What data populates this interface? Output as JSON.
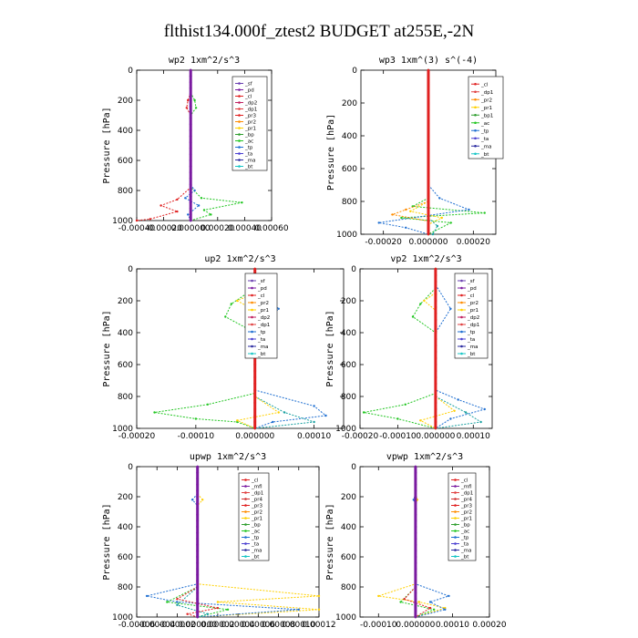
{
  "figure_title": "flthist134.000f_ztest2  BUDGET at255E,-2N",
  "chart_data": [
    {
      "type": "line",
      "title": "wp2  1xm^2/s^3",
      "ylabel": "Pressure [hPa]",
      "xlim": [
        -0.0004,
        0.0006
      ],
      "ylim": [
        1000,
        0
      ],
      "xticks": [
        -0.0004,
        -0.0002,
        0,
        0.0002,
        0.0004,
        0.0006
      ],
      "xticklabels": [
        "-0.00040",
        "-0.00020",
        "0.000000",
        "0.00020",
        "0.00040",
        "0.00060"
      ],
      "yticks": [
        0,
        200,
        400,
        600,
        800,
        1000
      ],
      "legend": [
        "_sf",
        "_pd",
        "_cl",
        "_dp2",
        "_dp1",
        "_pr3",
        "_pr2",
        "_pr1",
        "_bp",
        "_ac",
        "_tp",
        "_ta",
        "_ma",
        "_bt"
      ],
      "series": [
        {
          "name": "_cl",
          "color": "#e02020",
          "points": [
            [
              0,
              0
            ],
            [
              0,
              150
            ],
            [
              -2e-05,
              200
            ],
            [
              -3e-05,
              250
            ],
            [
              0,
              300
            ],
            [
              0,
              780
            ],
            [
              -0.0001,
              860
            ],
            [
              -0.00022,
              900
            ],
            [
              -0.0001,
              940
            ],
            [
              -0.0003,
              990
            ],
            [
              -0.0004,
              1000
            ]
          ]
        },
        {
          "name": "_pr1",
          "color": "#22c622",
          "points": [
            [
              0,
              0
            ],
            [
              0,
              150
            ],
            [
              3e-05,
              200
            ],
            [
              4e-05,
              250
            ],
            [
              0,
              300
            ],
            [
              0,
              780
            ],
            [
              8e-05,
              850
            ],
            [
              0.00038,
              880
            ],
            [
              0.0001,
              930
            ],
            [
              0.00015,
              960
            ],
            [
              0,
              1000
            ]
          ]
        },
        {
          "name": "_tp",
          "color": "#1f6fd1",
          "points": [
            [
              0,
              760
            ],
            [
              3e-05,
              800
            ],
            [
              -4e-05,
              850
            ],
            [
              6e-05,
              900
            ],
            [
              -2e-05,
              960
            ],
            [
              0,
              1000
            ]
          ]
        },
        {
          "name": "_pd",
          "color": "#7a1aa0",
          "points": [
            [
              0,
              0
            ],
            [
              0,
              1000
            ]
          ]
        }
      ]
    },
    {
      "type": "line",
      "title": "wp3  1xm^(3) s^(-4)",
      "ylabel": "Pressure [hPa]",
      "xlim": [
        -0.0003,
        0.0003
      ],
      "ylim": [
        1000,
        0
      ],
      "xticks": [
        -0.0002,
        0,
        0.0002
      ],
      "xticklabels": [
        "-0.00020",
        "0.000000",
        "0.00020"
      ],
      "yticks": [
        0,
        200,
        400,
        600,
        800,
        1000
      ],
      "legend": [
        "_cl",
        "_dp1",
        "_pr2",
        "_pr1",
        "_bp1",
        "_ac",
        "_tp",
        "_ta",
        "_ma",
        "_bt"
      ],
      "series": [
        {
          "name": "_ac",
          "color": "#22c622",
          "points": [
            [
              0,
              0
            ],
            [
              0,
              780
            ],
            [
              -7e-05,
              830
            ],
            [
              0.00025,
              870
            ],
            [
              -0.00012,
              900
            ],
            [
              0.0001,
              930
            ],
            [
              0,
              1000
            ]
          ]
        },
        {
          "name": "_tp",
          "color": "#1f6fd1",
          "points": [
            [
              0,
              0
            ],
            [
              0,
              700
            ],
            [
              5e-05,
              780
            ],
            [
              0.00018,
              850
            ],
            [
              -0.00022,
              930
            ],
            [
              -0.0001,
              960
            ],
            [
              0,
              1000
            ]
          ]
        },
        {
          "name": "_pr2",
          "color": "#ff8c00",
          "points": [
            [
              0,
              800
            ],
            [
              -0.0001,
              850
            ],
            [
              -0.00016,
              880
            ],
            [
              0,
              920
            ]
          ]
        },
        {
          "name": "_ta",
          "color": "#ffd000",
          "points": [
            [
              0,
              800
            ],
            [
              -8e-05,
              860
            ],
            [
              6e-05,
              900
            ],
            [
              0,
              940
            ]
          ]
        },
        {
          "name": "_bt",
          "color": "#17a0a0",
          "points": [
            [
              0,
              900
            ],
            [
              4e-05,
              950
            ],
            [
              2e-05,
              1000
            ]
          ]
        },
        {
          "name": "_cl",
          "color": "#e02020",
          "points": [
            [
              0,
              0
            ],
            [
              0,
              1000
            ]
          ]
        }
      ]
    },
    {
      "type": "line",
      "title": "up2  1xm^2/s^3",
      "ylabel": "Pressure [hPa]",
      "xlim": [
        -0.0002,
        0.00015
      ],
      "ylim": [
        1000,
        0
      ],
      "xticks": [
        -0.0002,
        -0.0001,
        0,
        0.0001
      ],
      "xticklabels": [
        "-0.00020",
        "-0.00010",
        "0.000000",
        "0.00010"
      ],
      "yticks": [
        0,
        200,
        400,
        600,
        800,
        1000
      ],
      "legend": [
        "_sf",
        "_pd",
        "_cl",
        "_pr2",
        "_pr1",
        "_dp2",
        "_dp1",
        "_tp",
        "_ta",
        "_ma",
        "_bt"
      ],
      "series": [
        {
          "name": "_dp1",
          "color": "#22c622",
          "points": [
            [
              0,
              0
            ],
            [
              0,
              120
            ],
            [
              -4e-05,
              220
            ],
            [
              -5e-05,
              300
            ],
            [
              0,
              400
            ],
            [
              0,
              780
            ],
            [
              -8e-05,
              850
            ],
            [
              -0.00017,
              900
            ],
            [
              -0.0001,
              940
            ],
            [
              -3e-05,
              960
            ],
            [
              0,
              1000
            ]
          ]
        },
        {
          "name": "_pr2",
          "color": "#ffd000",
          "points": [
            [
              0,
              150
            ],
            [
              -3e-05,
              200
            ],
            [
              0,
              260
            ],
            [
              0,
              800
            ],
            [
              4e-05,
              900
            ],
            [
              -3e-05,
              950
            ],
            [
              0,
              1000
            ]
          ]
        },
        {
          "name": "_tp",
          "color": "#1f6fd1",
          "points": [
            [
              0,
              100
            ],
            [
              4e-05,
              250
            ],
            [
              0,
              400
            ],
            [
              0,
              760
            ],
            [
              0.0001,
              860
            ],
            [
              0.00012,
              920
            ],
            [
              3e-05,
              960
            ],
            [
              0,
              1000
            ]
          ]
        },
        {
          "name": "_bt",
          "color": "#17a0a0",
          "points": [
            [
              0,
              800
            ],
            [
              5e-05,
              900
            ],
            [
              0.0001,
              960
            ],
            [
              0,
              1000
            ]
          ]
        },
        {
          "name": "_cl",
          "color": "#e02020",
          "points": [
            [
              0,
              0
            ],
            [
              0,
              1000
            ]
          ]
        }
      ]
    },
    {
      "type": "line",
      "title": "vp2  1xm^2/s^3",
      "ylabel": "Pressure [hPa]",
      "xlim": [
        -0.0002,
        0.00015
      ],
      "ylim": [
        1000,
        0
      ],
      "xticks": [
        -0.0002,
        -0.0001,
        0,
        0.0001
      ],
      "xticklabels": [
        "-0.00020",
        "-0.00010",
        "0.000000",
        "0.00010"
      ],
      "yticks": [
        0,
        200,
        400,
        600,
        800,
        1000
      ],
      "legend": [
        "_sf",
        "_pd",
        "_cl",
        "_pr2",
        "_pr1",
        "_dp2",
        "_dp1",
        "_tp",
        "_ta",
        "_ma",
        "_bt"
      ],
      "series": [
        {
          "name": "_dp1",
          "color": "#22c622",
          "points": [
            [
              0,
              0
            ],
            [
              0,
              120
            ],
            [
              -4e-05,
              220
            ],
            [
              -6e-05,
              300
            ],
            [
              0,
              400
            ],
            [
              0,
              780
            ],
            [
              -8e-05,
              850
            ],
            [
              -0.00019,
              900
            ],
            [
              -0.0001,
              940
            ],
            [
              0,
              1000
            ]
          ]
        },
        {
          "name": "_pr2",
          "color": "#ffd000",
          "points": [
            [
              0,
              150
            ],
            [
              -3e-05,
              200
            ],
            [
              0,
              260
            ],
            [
              0,
              800
            ],
            [
              5e-05,
              890
            ],
            [
              -4e-05,
              950
            ],
            [
              0,
              1000
            ]
          ]
        },
        {
          "name": "_tp",
          "color": "#1f6fd1",
          "points": [
            [
              0,
              100
            ],
            [
              4e-05,
              250
            ],
            [
              0,
              400
            ],
            [
              0,
              760
            ],
            [
              6e-05,
              820
            ],
            [
              0.00013,
              880
            ],
            [
              4e-05,
              940
            ],
            [
              0,
              1000
            ]
          ]
        },
        {
          "name": "_bt",
          "color": "#17a0a0",
          "points": [
            [
              0,
              800
            ],
            [
              8e-05,
              900
            ],
            [
              0.00012,
              960
            ],
            [
              0,
              1000
            ]
          ]
        },
        {
          "name": "_cl",
          "color": "#e02020",
          "points": [
            [
              0,
              0
            ],
            [
              0,
              1000
            ]
          ]
        }
      ]
    },
    {
      "type": "line",
      "title": "upwp  1xm^2/s^3",
      "ylabel": "Pressure [hPa]",
      "xlim": [
        -6e-05,
        0.00012
      ],
      "ylim": [
        1000,
        0
      ],
      "xticks": [
        -6e-05,
        -4e-05,
        -2e-05,
        0,
        2e-05,
        4e-05,
        6e-05,
        8e-05,
        0.0001,
        0.00012
      ],
      "xticklabels": [
        "-0.00006",
        "-0.00004",
        "-0.00002",
        "0.000000",
        "0.00002",
        "0.00004",
        "0.00006",
        "0.00008",
        "0.00010",
        "0.00012"
      ],
      "yticks": [
        0,
        200,
        400,
        600,
        800,
        1000
      ],
      "legend": [
        "_cl",
        "_mfl",
        "_dp1",
        "_pr4",
        "_pr3",
        "_pr2",
        "_pr1",
        "_bp",
        "_ac",
        "_tp",
        "_ta",
        "_ma",
        "_bt"
      ],
      "series": [
        {
          "name": "_pr1",
          "color": "#ffd000",
          "points": [
            [
              0,
              180
            ],
            [
              5e-06,
              220
            ],
            [
              0,
              260
            ],
            [
              0,
              780
            ],
            [
              0.00012,
              860
            ],
            [
              2e-05,
              900
            ],
            [
              0.00012,
              950
            ],
            [
              0,
              1000
            ]
          ]
        },
        {
          "name": "_tp",
          "color": "#1f6fd1",
          "points": [
            [
              0,
              180
            ],
            [
              -5e-06,
              220
            ],
            [
              0,
              260
            ],
            [
              0,
              780
            ],
            [
              -5e-05,
              860
            ],
            [
              -2e-05,
              900
            ],
            [
              0.0001,
              950
            ],
            [
              0,
              1000
            ]
          ]
        },
        {
          "name": "_ac",
          "color": "#22c622",
          "points": [
            [
              0,
              800
            ],
            [
              -3e-05,
              900
            ],
            [
              3e-05,
              950
            ],
            [
              0,
              1000
            ]
          ]
        },
        {
          "name": "_bt",
          "color": "#17a0a0",
          "points": [
            [
              0,
              800
            ],
            [
              -2e-05,
              920
            ],
            [
              1e-05,
              980
            ],
            [
              0,
              1000
            ]
          ]
        },
        {
          "name": "_pr3",
          "color": "#e02020",
          "points": [
            [
              0,
              800
            ],
            [
              -2e-05,
              880
            ],
            [
              2e-05,
              940
            ],
            [
              -1e-05,
              980
            ],
            [
              0,
              1000
            ]
          ]
        },
        {
          "name": "_mfl",
          "color": "#7a1aa0",
          "points": [
            [
              0,
              0
            ],
            [
              0,
              1000
            ]
          ]
        }
      ]
    },
    {
      "type": "line",
      "title": "vpwp  1xm^2/s^3",
      "ylabel": "Pressure [hPa]",
      "xlim": [
        -0.00015,
        0.0002
      ],
      "ylim": [
        1000,
        0
      ],
      "xticks": [
        -0.0001,
        0,
        0.0001,
        0.0002
      ],
      "xticklabels": [
        "-0.00010",
        "0.000000",
        "0.00010",
        "0.00020"
      ],
      "yticks": [
        0,
        200,
        400,
        600,
        800,
        1000
      ],
      "legend": [
        "_cl",
        "_mfl",
        "_dp1",
        "_pr4",
        "_pr3",
        "_pr2",
        "_pr1",
        "_bp",
        "_ac",
        "_tp",
        "_ta",
        "_ma",
        "_bt"
      ],
      "series": [
        {
          "name": "_pr1",
          "color": "#ffd000",
          "points": [
            [
              0,
              180
            ],
            [
              5e-06,
              220
            ],
            [
              0,
              260
            ],
            [
              0,
              780
            ],
            [
              -0.0001,
              860
            ],
            [
              1e-05,
              900
            ],
            [
              8e-05,
              940
            ],
            [
              0,
              1000
            ]
          ]
        },
        {
          "name": "_tp",
          "color": "#1f6fd1",
          "points": [
            [
              0,
              180
            ],
            [
              -5e-06,
              220
            ],
            [
              0,
              260
            ],
            [
              0,
              780
            ],
            [
              9e-05,
              860
            ],
            [
              4e-05,
              900
            ],
            [
              8e-05,
              950
            ],
            [
              0,
              1000
            ]
          ]
        },
        {
          "name": "_ac",
          "color": "#22c622",
          "points": [
            [
              0,
              800
            ],
            [
              -4e-05,
              900
            ],
            [
              5e-05,
              950
            ],
            [
              0,
              1000
            ]
          ]
        },
        {
          "name": "_pr3",
          "color": "#e02020",
          "points": [
            [
              0,
              800
            ],
            [
              -3e-05,
              880
            ],
            [
              4e-05,
              940
            ],
            [
              0,
              1000
            ]
          ]
        },
        {
          "name": "_mfl",
          "color": "#7a1aa0",
          "points": [
            [
              0,
              0
            ],
            [
              0,
              1000
            ]
          ]
        }
      ]
    }
  ]
}
